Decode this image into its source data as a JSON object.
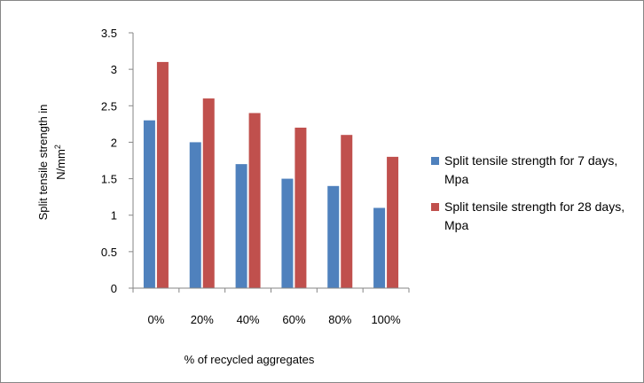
{
  "chart_data": {
    "type": "bar",
    "categories": [
      "0%",
      "20%",
      "40%",
      "60%",
      "80%",
      "100%"
    ],
    "series": [
      {
        "name": "Split tensile strength for 7 days, Mpa",
        "values": [
          2.3,
          2.0,
          1.7,
          1.5,
          1.4,
          1.1
        ],
        "color": "#4f81bd"
      },
      {
        "name": "Split tensile strength for 28 days, Mpa",
        "values": [
          3.1,
          2.6,
          2.4,
          2.2,
          2.1,
          1.8
        ],
        "color": "#c0504d"
      }
    ],
    "xlabel": "% of recycled aggregates",
    "ylabel": {
      "main": "Split tensile strength in",
      "unit": "N/mm",
      "sup": "2"
    },
    "ylim": [
      0,
      3.5
    ],
    "yticks": [
      0,
      0.5,
      1,
      1.5,
      2,
      2.5,
      3,
      3.5
    ],
    "ytick_labels": [
      "0",
      "0.5",
      "1",
      "1.5",
      "2",
      "2.5",
      "3",
      "3.5"
    ],
    "grid": false,
    "legend_position": "right"
  }
}
